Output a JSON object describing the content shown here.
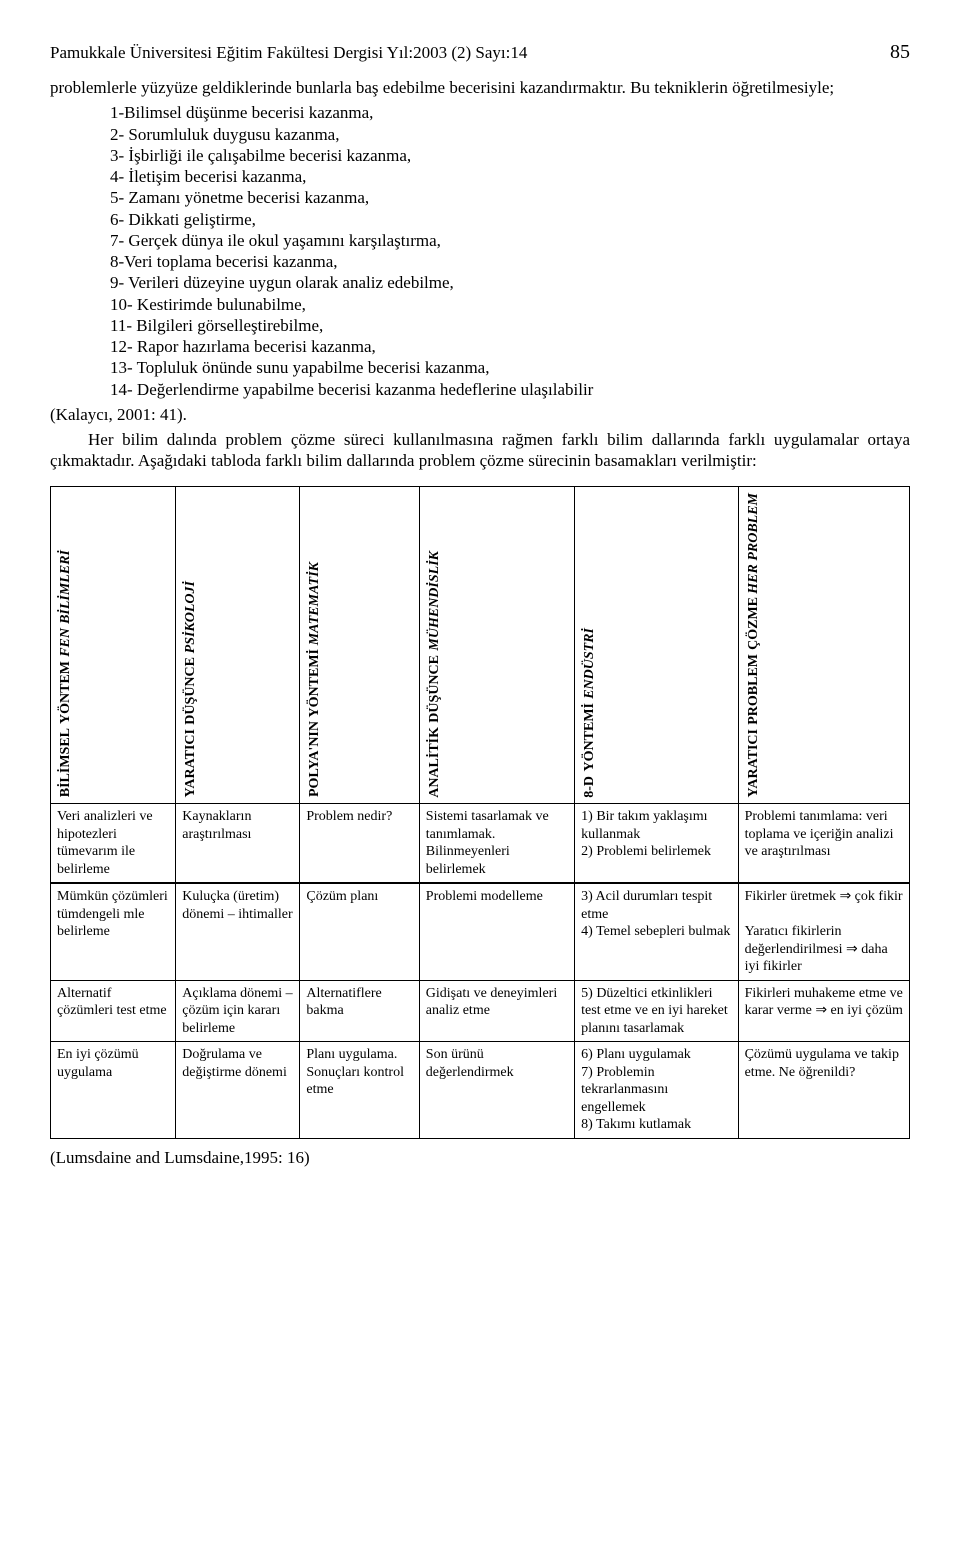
{
  "header": {
    "journal": "Pamukkale Üniversitesi Eğitim Fakültesi Dergisi Yıl:2003 (2) Sayı:14",
    "page": "85"
  },
  "intro_para": "problemlerle yüzyüze geldiklerinde bunlarla baş edebilme becerisini kazandırmaktır. Bu tekniklerin öğretilmesiyle;",
  "skills": [
    "1-Bilimsel düşünme becerisi  kazanma,",
    "2- Sorumluluk duygusu kazanma,",
    "3- İşbirliği ile çalışabilme becerisi kazanma,",
    "4- İletişim becerisi kazanma,",
    "5- Zamanı yönetme becerisi kazanma,",
    "6- Dikkati geliştirme,",
    "7- Gerçek dünya ile okul yaşamını karşılaştırma,",
    "8-Veri toplama becerisi kazanma,",
    "9- Verileri düzeyine uygun olarak analiz edebilme,",
    "10- Kestirimde bulunabilme,",
    "11- Bilgileri görselleştirebilme,",
    "12- Rapor hazırlama becerisi kazanma,",
    "13- Topluluk önünde sunu yapabilme becerisi kazanma,",
    "14- Değerlendirme yapabilme becerisi kazanma hedeflerine ulaşılabilir"
  ],
  "ref_line": "(Kalaycı, 2001: 41).",
  "bridge_para": "Her bilim dalında problem çözme süreci kullanılmasına rağmen farklı bilim dallarında farklı uygulamalar ortaya çıkmaktadır. Aşağıdaki tabloda farklı bilim dallarında problem çözme sürecinin basamakları verilmiştir:",
  "table": {
    "columns": [
      {
        "line1": "BİLİMSEL",
        "line2": "YÖNTEM",
        "italic1": "FEN",
        "italic2": "BİLİMLERİ"
      },
      {
        "line1": "YARATICI",
        "line2": "DÜŞÜNCE",
        "italic1": "PSİKOLOJİ",
        "italic2": ""
      },
      {
        "line1": "POLYA'NIN",
        "line2": "YÖNTEMİ",
        "italic1": "MATEMATİK",
        "italic2": ""
      },
      {
        "line1": "ANALİTİK",
        "line2": "DÜŞÜNCE",
        "italic1": "MÜHENDİSLİK",
        "italic2": ""
      },
      {
        "line1": "8-D",
        "line2": "YÖNTEMİ",
        "italic1": "ENDÜSTRİ",
        "italic2": ""
      },
      {
        "line1": "YARATICI",
        "line2": "PROBLEM",
        "line3": "ÇÖZME",
        "italic1": "HER PROBLEM",
        "italic2": ""
      }
    ],
    "rows": [
      {
        "thick_top": false,
        "cells": [
          "Veri analizleri ve hipotezleri tümevarım ile belirleme",
          "Kaynakların araştırılması",
          "Problem nedir?",
          "Sistemi tasarlamak ve tanımlamak. Bilinmeyenleri belirlemek",
          "1) Bir takım yaklaşımı kullanmak\n2) Problemi belirlemek",
          "Problemi tanımlama: veri toplama ve içeriğin analizi ve araştırılması"
        ]
      },
      {
        "thick_top": true,
        "cells": [
          "Mümkün çözümleri tümdengeli mle belirleme",
          "Kuluçka (üretim) dönemi – ihtimaller",
          "Çözüm planı",
          "Problemi modelleme",
          "3) Acil durumları tespit etme\n4) Temel sebepleri bulmak",
          "Fikirler üretmek ⇒ çok fikir\n\nYaratıcı fikirlerin değerlendirilmesi ⇒ daha iyi fikirler"
        ]
      },
      {
        "thick_top": false,
        "cells": [
          "Alternatif çözümleri test etme",
          "Açıklama dönemi – çözüm için kararı belirleme",
          "Alternatiflere bakma",
          "Gidişatı ve deneyimleri analiz etme",
          "5) Düzeltici etkinlikleri test etme ve en iyi hareket planını tasarlamak",
          "Fikirleri muhakeme etme ve karar verme ⇒ en iyi çözüm"
        ]
      },
      {
        "thick_top": false,
        "cells": [
          "En iyi çözümü uygulama",
          "Doğrulama ve değiştirme dönemi",
          "Planı uygulama. Sonuçları kontrol etme",
          "Son ürünü değerlendirmek",
          "6) Planı uygulamak\n7) Problemin tekrarlanmasını engellemek\n8) Takımı kutlamak",
          "Çözümü uygulama ve takip etme. Ne öğrenildi?"
        ]
      }
    ]
  },
  "citation": "(Lumsdaine and  Lumsdaine,1995: 16)"
}
